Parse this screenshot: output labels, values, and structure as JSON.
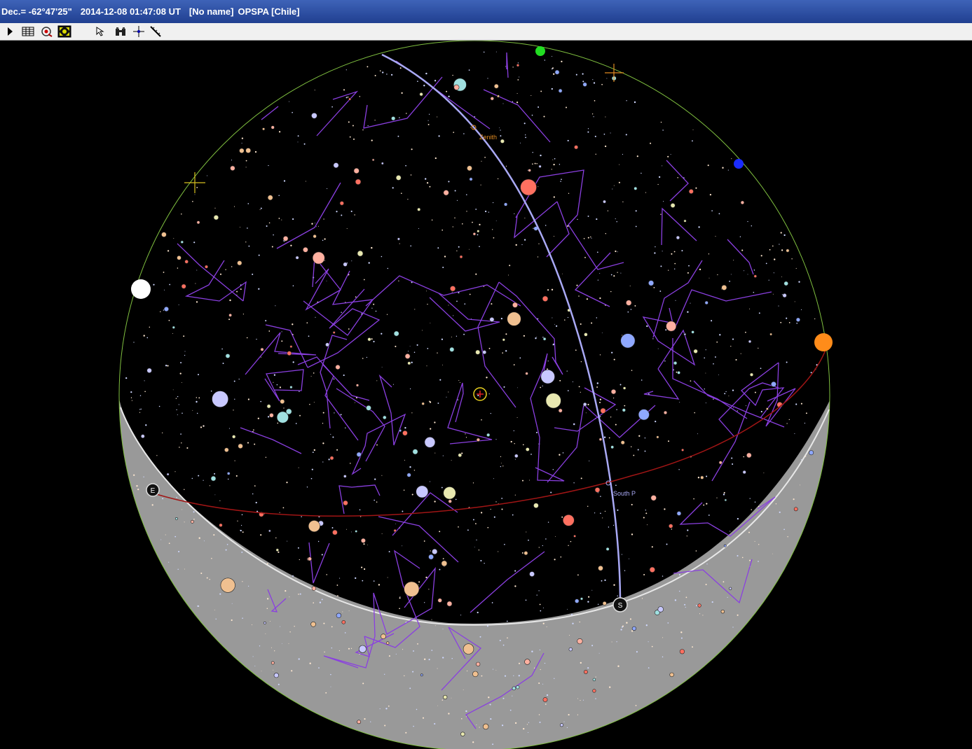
{
  "window": {
    "declination": "Dec.= -62°47'25\"",
    "datetime": "2014-12-08 01:47:08 UT",
    "location_name": "[No name]",
    "observatory": "OPSPA [Chile]"
  },
  "toolbar": {
    "buttons": [
      {
        "name": "play-icon"
      },
      {
        "name": "table-icon"
      },
      {
        "name": "eye-target-icon"
      },
      {
        "name": "fullscreen-icon"
      },
      {
        "name": "select-arrow-icon"
      },
      {
        "name": "binoculars-icon"
      },
      {
        "name": "crosshair-icon"
      },
      {
        "name": "measure-ruler-icon"
      }
    ]
  },
  "sky": {
    "labels": {
      "zenith": "Zenith",
      "south_pole": "South P",
      "east_marker": "E",
      "south_marker": "S"
    },
    "colors": {
      "sky": "#000000",
      "ground": "#9a9a9a",
      "constellation_lines": "#8a3fe0",
      "meridian": "#a9a9f5",
      "ecliptic": "#a01515",
      "horizon": "#7fbf3f",
      "sun": "#ff8c1a",
      "moon": "#ffffff",
      "planet_green": "#22dd22",
      "planet_blue": "#1a2cff"
    }
  }
}
